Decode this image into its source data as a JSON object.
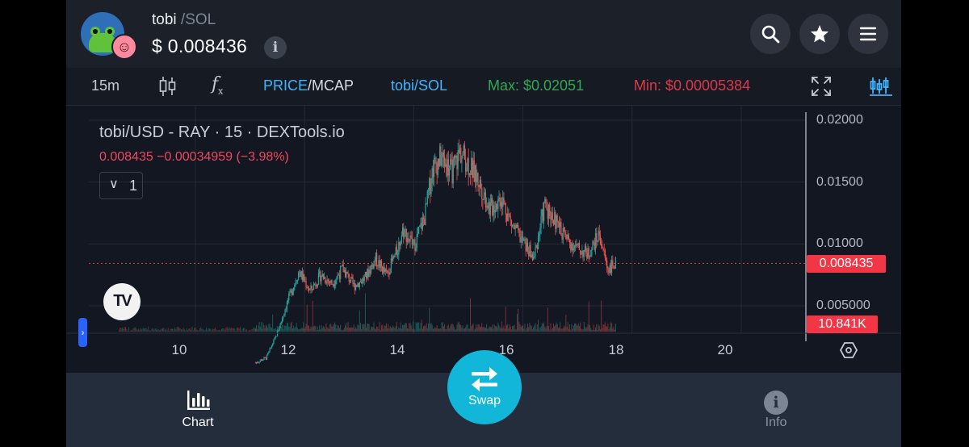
{
  "header": {
    "token": "tobi",
    "separator": "/",
    "quote": "SOL",
    "currency": "$",
    "price": "0.008436",
    "info_glyph": "i",
    "icons": [
      "search-icon",
      "star-icon",
      "menu-icon"
    ]
  },
  "toolbar": {
    "interval": "15m",
    "indicators_glyph": "f",
    "indicators_sub": "x",
    "price_label": "PRICE",
    "mcap_label": "/MCAP",
    "pair": "tobi/SOL",
    "max_label": "Max: $0.02051",
    "min_label": "Min: $0.00005384"
  },
  "legend": {
    "title": "tobi/USD - RAY · 15 · DEXTools.io",
    "values": "0.008435  −0.00034959 (−3.98%)",
    "collapse_glyph": "∨",
    "indicator_count": "1"
  },
  "chart_data": {
    "type": "candlestick",
    "symbol": "tobi/USD",
    "exchange": "RAY",
    "interval": "15",
    "source": "DEXTools.io",
    "last_price": "0.008435",
    "change": "−0.00034959",
    "change_pct": "−3.98%",
    "volume_label": "10.841K",
    "y_ticks": [
      "0.02000",
      "0.01500",
      "0.01000",
      "0.005000"
    ],
    "x_ticks": [
      "10",
      "12",
      "14",
      "16",
      "18",
      "20"
    ],
    "ylim": [
      0.0025,
      0.0215
    ],
    "price_path": [
      [
        11.1,
        0.0004
      ],
      [
        11.3,
        0.0008
      ],
      [
        11.5,
        0.0028
      ],
      [
        11.7,
        0.0055
      ],
      [
        11.9,
        0.0078
      ],
      [
        12.1,
        0.0062
      ],
      [
        12.3,
        0.0075
      ],
      [
        12.5,
        0.0068
      ],
      [
        12.7,
        0.008
      ],
      [
        12.9,
        0.0066
      ],
      [
        13.1,
        0.0072
      ],
      [
        13.3,
        0.0088
      ],
      [
        13.5,
        0.0075
      ],
      [
        13.7,
        0.0095
      ],
      [
        13.8,
        0.0112
      ],
      [
        14.0,
        0.0098
      ],
      [
        14.2,
        0.0122
      ],
      [
        14.35,
        0.0162
      ],
      [
        14.5,
        0.017
      ],
      [
        14.7,
        0.0158
      ],
      [
        14.85,
        0.0175
      ],
      [
        15.0,
        0.0165
      ],
      [
        15.2,
        0.015
      ],
      [
        15.4,
        0.0128
      ],
      [
        15.6,
        0.0138
      ],
      [
        15.8,
        0.0115
      ],
      [
        16.0,
        0.0102
      ],
      [
        16.2,
        0.0088
      ],
      [
        16.4,
        0.0132
      ],
      [
        16.6,
        0.0118
      ],
      [
        16.8,
        0.0104
      ],
      [
        17.0,
        0.0096
      ],
      [
        17.2,
        0.0092
      ],
      [
        17.4,
        0.0108
      ],
      [
        17.55,
        0.008
      ],
      [
        17.7,
        0.0084
      ]
    ],
    "colors": {
      "up": "#26a69a",
      "down": "#ef5350",
      "last_line": "#f23645"
    }
  },
  "nav": {
    "chart_label": "Chart",
    "swap_label": "Swap",
    "info_label": "Info",
    "info_glyph": "i"
  }
}
